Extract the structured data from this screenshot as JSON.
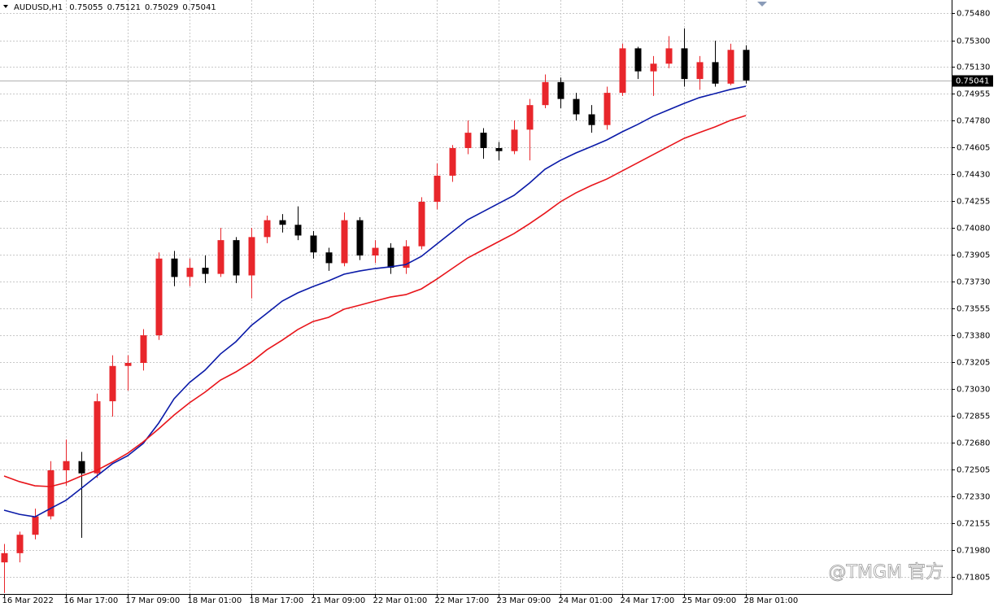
{
  "chart_data": {
    "type": "candlestick",
    "symbol": "AUDUSD,H1",
    "header_ohlc": [
      0.75055,
      0.75121,
      0.75029,
      0.75041
    ],
    "watermark": "@TMGM 官方",
    "up_color": "#e8262b",
    "down_color": "#000000",
    "grid": true,
    "price_line": 0.75041,
    "categories": [
      "16 Mar 2022",
      null,
      null,
      null,
      "16 Mar 17:00",
      null,
      null,
      null,
      "17 Mar 09:00",
      null,
      null,
      null,
      "18 Mar 01:00",
      null,
      null,
      null,
      "18 Mar 17:00",
      null,
      null,
      null,
      "21 Mar 09:00",
      null,
      null,
      null,
      "22 Mar 01:00",
      null,
      null,
      null,
      "22 Mar 17:00",
      null,
      null,
      null,
      "23 Mar 09:00",
      null,
      null,
      null,
      "24 Mar 01:00",
      null,
      null,
      null,
      "24 Mar 17:00",
      null,
      null,
      null,
      "25 Mar 09:00",
      null,
      null,
      null,
      "28 Mar 01:00"
    ],
    "open": [
      0.719,
      0.7196,
      0.7208,
      0.722,
      0.725,
      0.7256,
      0.7248,
      0.7295,
      0.7318,
      0.732,
      0.7338,
      0.7388,
      0.7376,
      0.7382,
      0.7378,
      0.74,
      0.7377,
      0.7402,
      0.7413,
      0.741,
      0.7403,
      0.7392,
      0.7385,
      0.7413,
      0.739,
      0.7395,
      0.7382,
      0.7396,
      0.7425,
      0.7442,
      0.746,
      0.747,
      0.746,
      0.7458,
      0.7472,
      0.7488,
      0.7503,
      0.7492,
      0.7482,
      0.7475,
      0.7496,
      0.7525,
      0.751,
      0.7515,
      0.7525,
      0.7505,
      0.7516,
      0.7502,
      0.7524
    ],
    "high": [
      0.7202,
      0.721,
      0.7225,
      0.7256,
      0.727,
      0.7262,
      0.73,
      0.7325,
      0.7325,
      0.7342,
      0.7392,
      0.7393,
      0.7388,
      0.739,
      0.7408,
      0.7402,
      0.7408,
      0.7416,
      0.7417,
      0.7422,
      0.7406,
      0.7395,
      0.7418,
      0.7415,
      0.74,
      0.7398,
      0.74,
      0.7428,
      0.745,
      0.7462,
      0.7478,
      0.7473,
      0.7464,
      0.7478,
      0.7492,
      0.7508,
      0.7506,
      0.7496,
      0.7488,
      0.75,
      0.7528,
      0.7526,
      0.752,
      0.7533,
      0.7538,
      0.752,
      0.753,
      0.7528,
      0.7527
    ],
    "low": [
      0.717,
      0.719,
      0.7205,
      0.7218,
      0.724,
      0.7206,
      0.7245,
      0.7285,
      0.7302,
      0.7315,
      0.7335,
      0.737,
      0.737,
      0.7372,
      0.7376,
      0.7372,
      0.7362,
      0.7398,
      0.7405,
      0.74,
      0.7388,
      0.738,
      0.7383,
      0.7387,
      0.7385,
      0.7378,
      0.7378,
      0.7394,
      0.742,
      0.7438,
      0.7456,
      0.7453,
      0.7452,
      0.7456,
      0.7452,
      0.7486,
      0.7486,
      0.7478,
      0.747,
      0.7472,
      0.7494,
      0.7505,
      0.7494,
      0.7512,
      0.75,
      0.7498,
      0.75,
      0.7501,
      0.7502
    ],
    "close": [
      0.7196,
      0.7208,
      0.722,
      0.725,
      0.7256,
      0.7248,
      0.7295,
      0.7318,
      0.732,
      0.7338,
      0.7388,
      0.7376,
      0.7382,
      0.7378,
      0.74,
      0.7377,
      0.7402,
      0.7413,
      0.741,
      0.7403,
      0.7392,
      0.7385,
      0.7413,
      0.739,
      0.7395,
      0.7382,
      0.7396,
      0.7425,
      0.7442,
      0.746,
      0.747,
      0.746,
      0.7458,
      0.7472,
      0.7488,
      0.7503,
      0.7492,
      0.7482,
      0.7475,
      0.7496,
      0.7525,
      0.751,
      0.7515,
      0.7525,
      0.7505,
      0.7516,
      0.7502,
      0.7524,
      0.75041
    ],
    "series": [
      {
        "color": "#0a1aa8",
        "values": [
          0.7224,
          0.72213,
          0.72197,
          0.72251,
          0.72304,
          0.72383,
          0.72463,
          0.72542,
          0.72595,
          0.72675,
          0.72807,
          0.72966,
          0.73072,
          0.73152,
          0.73258,
          0.73338,
          0.73444,
          0.73523,
          0.73603,
          0.73656,
          0.73698,
          0.73735,
          0.73778,
          0.73799,
          0.73815,
          0.73826,
          0.73841,
          0.73894,
          0.73974,
          0.74054,
          0.74133,
          0.74186,
          0.74239,
          0.74292,
          0.74372,
          0.74462,
          0.7452,
          0.74568,
          0.7461,
          0.74653,
          0.74706,
          0.74754,
          0.74807,
          0.74849,
          0.74891,
          0.74929,
          0.74955,
          0.74982,
          0.75003
        ]
      },
      {
        "color": "#e8151b",
        "values": [
          0.72463,
          0.72426,
          0.72399,
          0.72394,
          0.7242,
          0.72463,
          0.725,
          0.72553,
          0.72611,
          0.72685,
          0.7277,
          0.7286,
          0.7294,
          0.73009,
          0.73088,
          0.73141,
          0.73205,
          0.73285,
          0.73348,
          0.73417,
          0.7347,
          0.73497,
          0.7355,
          0.73576,
          0.73603,
          0.73629,
          0.73645,
          0.73682,
          0.73746,
          0.73815,
          0.73884,
          0.73937,
          0.7399,
          0.74043,
          0.74107,
          0.74176,
          0.7425,
          0.74308,
          0.74356,
          0.74398,
          0.74451,
          0.74504,
          0.74557,
          0.7461,
          0.74663,
          0.74701,
          0.74738,
          0.7478,
          0.74812
        ]
      }
    ],
    "ylim": [
      0.71694,
      0.75565
    ],
    "yticks": [
      {
        "value": 0.7548,
        "label": "0.75480"
      },
      {
        "value": 0.753,
        "label": "0.75300"
      },
      {
        "value": 0.7513,
        "label": "0.75130"
      },
      {
        "value": 0.74955,
        "label": "0.74955"
      },
      {
        "value": 0.7478,
        "label": "0.74780"
      },
      {
        "value": 0.74605,
        "label": "0.74605"
      },
      {
        "value": 0.7443,
        "label": "0.74430"
      },
      {
        "value": 0.74255,
        "label": "0.74255"
      },
      {
        "value": 0.7408,
        "label": "0.74080"
      },
      {
        "value": 0.73905,
        "label": "0.73905"
      },
      {
        "value": 0.7373,
        "label": "0.73730"
      },
      {
        "value": 0.73555,
        "label": "0.73555"
      },
      {
        "value": 0.7338,
        "label": "0.73380"
      },
      {
        "value": 0.73205,
        "label": "0.73205"
      },
      {
        "value": 0.7303,
        "label": "0.73030"
      },
      {
        "value": 0.72855,
        "label": "0.72855"
      },
      {
        "value": 0.7268,
        "label": "0.72680"
      },
      {
        "value": 0.72505,
        "label": "0.72505"
      },
      {
        "value": 0.7233,
        "label": "0.72330"
      },
      {
        "value": 0.72155,
        "label": "0.72155"
      },
      {
        "value": 0.7198,
        "label": "0.71980"
      },
      {
        "value": 0.71805,
        "label": "0.71805"
      }
    ]
  }
}
